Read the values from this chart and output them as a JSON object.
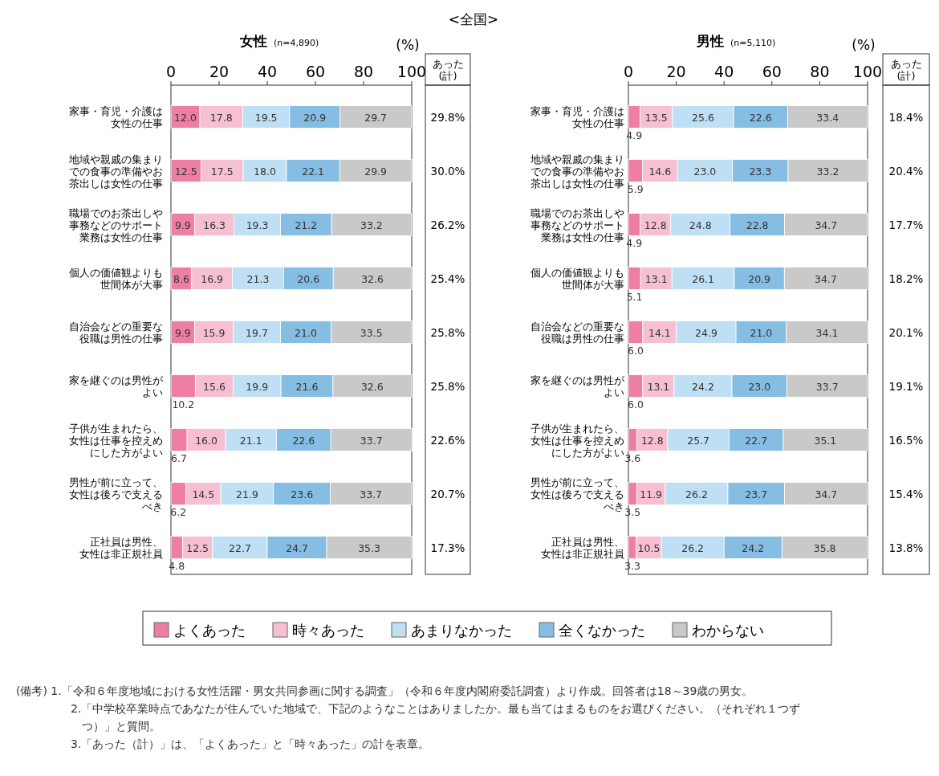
{
  "chart_data": [
    {
      "type": "bar",
      "orientation": "horizontal",
      "stacked": true,
      "title": "女性",
      "subtitle": "(n=4,890)",
      "xlabel": "(%)",
      "xlim": [
        0,
        100
      ],
      "xticks": [
        0,
        20,
        40,
        60,
        80,
        100
      ],
      "grid": false,
      "legend": "bottom",
      "categories": [
        "家事・育児・介護は女性の仕事",
        "地域や親戚の集まりでの食事の準備やお茶出しは女性の仕事",
        "職場でのお茶出しや事務などのサポート業務は女性の仕事",
        "個人の価値観よりも世間体が大事",
        "自治会などの重要な役職は男性の仕事",
        "家を継ぐのは男性がよい",
        "子供が生まれたら、女性は仕事を控えめにした方がよい",
        "男性が前に立って、女性は後ろで支えるべき",
        "正社員は男性、女性は非正規社員"
      ],
      "series": [
        {
          "name": "よくあった",
          "color": "#ee7fa3",
          "values": [
            12.0,
            12.5,
            9.9,
            8.6,
            9.9,
            10.2,
            6.7,
            6.2,
            4.8
          ],
          "value_labels": [
            "12.0",
            "12.5",
            "9.9",
            "8.6",
            "9.9",
            "10.2",
            "6.7",
            "6.2",
            "4.8"
          ]
        },
        {
          "name": "時々あった",
          "color": "#f7bfd2",
          "values": [
            17.8,
            17.5,
            16.3,
            16.9,
            15.9,
            15.6,
            16.0,
            14.5,
            12.5
          ],
          "value_labels": [
            "17.8",
            "17.5",
            "16.3",
            "16.9",
            "15.9",
            "15.6",
            "16.0",
            "14.5",
            "12.5"
          ]
        },
        {
          "name": "あまりなかった",
          "color": "#bfe0f4",
          "values": [
            19.5,
            18.0,
            19.3,
            21.3,
            19.7,
            19.9,
            21.1,
            21.9,
            22.7
          ],
          "value_labels": [
            "19.5",
            "18.0",
            "19.3",
            "21.3",
            "19.7",
            "19.9",
            "21.1",
            "21.9",
            "22.7"
          ]
        },
        {
          "name": "全くなかった",
          "color": "#86bde3",
          "values": [
            20.9,
            22.1,
            21.2,
            20.6,
            21.0,
            21.6,
            22.6,
            23.6,
            24.7
          ],
          "value_labels": [
            "20.9",
            "22.1",
            "21.2",
            "20.6",
            "21.0",
            "21.6",
            "22.6",
            "23.6",
            "24.7"
          ]
        },
        {
          "name": "わからない",
          "color": "#c9c9c9",
          "values": [
            29.7,
            29.9,
            33.2,
            32.6,
            33.5,
            32.6,
            33.7,
            33.7,
            35.3
          ],
          "value_labels": [
            "29.7",
            "29.9",
            "33.2",
            "32.6",
            "33.5",
            "32.6",
            "33.7",
            "33.7",
            "35.3"
          ]
        }
      ],
      "annotations": [
        "あった(計)",
        "29.8%",
        "30.0%",
        "26.2%",
        "25.4%",
        "25.8%",
        "25.8%",
        "22.6%",
        "20.7%",
        "17.3%",
        "<全国>",
        "(備考) 1.「令和６年度地域における女性活躍・男女共同参画に関する調査」（令和６年度内閣府委託調査）より作成。回答者は18～39歳の男女。",
        "2.「中学校卒業時点であなたが住んでいた地域で、下記のようなことはありましたか。最も当てはまるものをお選びください。（それぞれ１つずつ）」と質問。",
        "3.「あった（計）」は、「よくあった」と「時々あった」の計を表章。"
      ]
    },
    {
      "type": "bar",
      "orientation": "horizontal",
      "stacked": true,
      "title": "男性",
      "subtitle": "(n=5,110)",
      "xlabel": "(%)",
      "xlim": [
        0,
        100
      ],
      "xticks": [
        0,
        20,
        40,
        60,
        80,
        100
      ],
      "grid": false,
      "legend": "bottom",
      "categories": [
        "家事・育児・介護は女性の仕事",
        "地域や親戚の集まりでの食事の準備やお茶出しは女性の仕事",
        "職場でのお茶出しや事務などのサポート業務は女性の仕事",
        "個人の価値観よりも世間体が大事",
        "自治会などの重要な役職は男性の仕事",
        "家を継ぐのは男性がよい",
        "子供が生まれたら、女性は仕事を控えめにした方がよい",
        "男性が前に立って、女性は後ろで支えるべき",
        "正社員は男性、女性は非正規社員"
      ],
      "series": [
        {
          "name": "よくあった",
          "color": "#ee7fa3",
          "values": [
            4.9,
            5.9,
            4.9,
            5.1,
            6.0,
            6.0,
            3.6,
            3.5,
            3.3
          ],
          "value_labels": [
            "4.9",
            "5.9",
            "4.9",
            "5.1",
            "6.0",
            "6.0",
            "3.6",
            "3.5",
            "3.3"
          ]
        },
        {
          "name": "時々あった",
          "color": "#f7bfd2",
          "values": [
            13.5,
            14.6,
            12.8,
            13.1,
            14.1,
            13.1,
            12.8,
            11.9,
            10.5
          ],
          "value_labels": [
            "13.5",
            "14.6",
            "12.8",
            "13.1",
            "14.1",
            "13.1",
            "12.8",
            "11.9",
            "10.5"
          ]
        },
        {
          "name": "あまりなかった",
          "color": "#bfe0f4",
          "values": [
            25.6,
            23.0,
            24.8,
            26.1,
            24.9,
            24.2,
            25.7,
            26.2,
            26.2
          ],
          "value_labels": [
            "25.6",
            "23.0",
            "24.8",
            "26.1",
            "24.9",
            "24.2",
            "25.7",
            "26.2",
            "26.2"
          ]
        },
        {
          "name": "全くなかった",
          "color": "#86bde3",
          "values": [
            22.6,
            23.3,
            22.8,
            20.9,
            21.0,
            23.0,
            22.7,
            23.7,
            24.2
          ],
          "value_labels": [
            "22.6",
            "23.3",
            "22.8",
            "20.9",
            "21.0",
            "23.0",
            "22.7",
            "23.7",
            "24.2"
          ]
        },
        {
          "name": "わからない",
          "color": "#c9c9c9",
          "values": [
            33.4,
            33.2,
            34.7,
            34.7,
            34.1,
            33.7,
            35.1,
            34.7,
            35.8
          ],
          "value_labels": [
            "33.4",
            "33.2",
            "34.7",
            "34.7",
            "34.1",
            "33.7",
            "35.1",
            "34.7",
            "35.8"
          ]
        }
      ],
      "annotations": [
        "あった(計)",
        "18.4%",
        "20.4%",
        "17.7%",
        "18.2%",
        "20.1%",
        "19.1%",
        "16.5%",
        "15.4%",
        "13.8%"
      ]
    }
  ]
}
